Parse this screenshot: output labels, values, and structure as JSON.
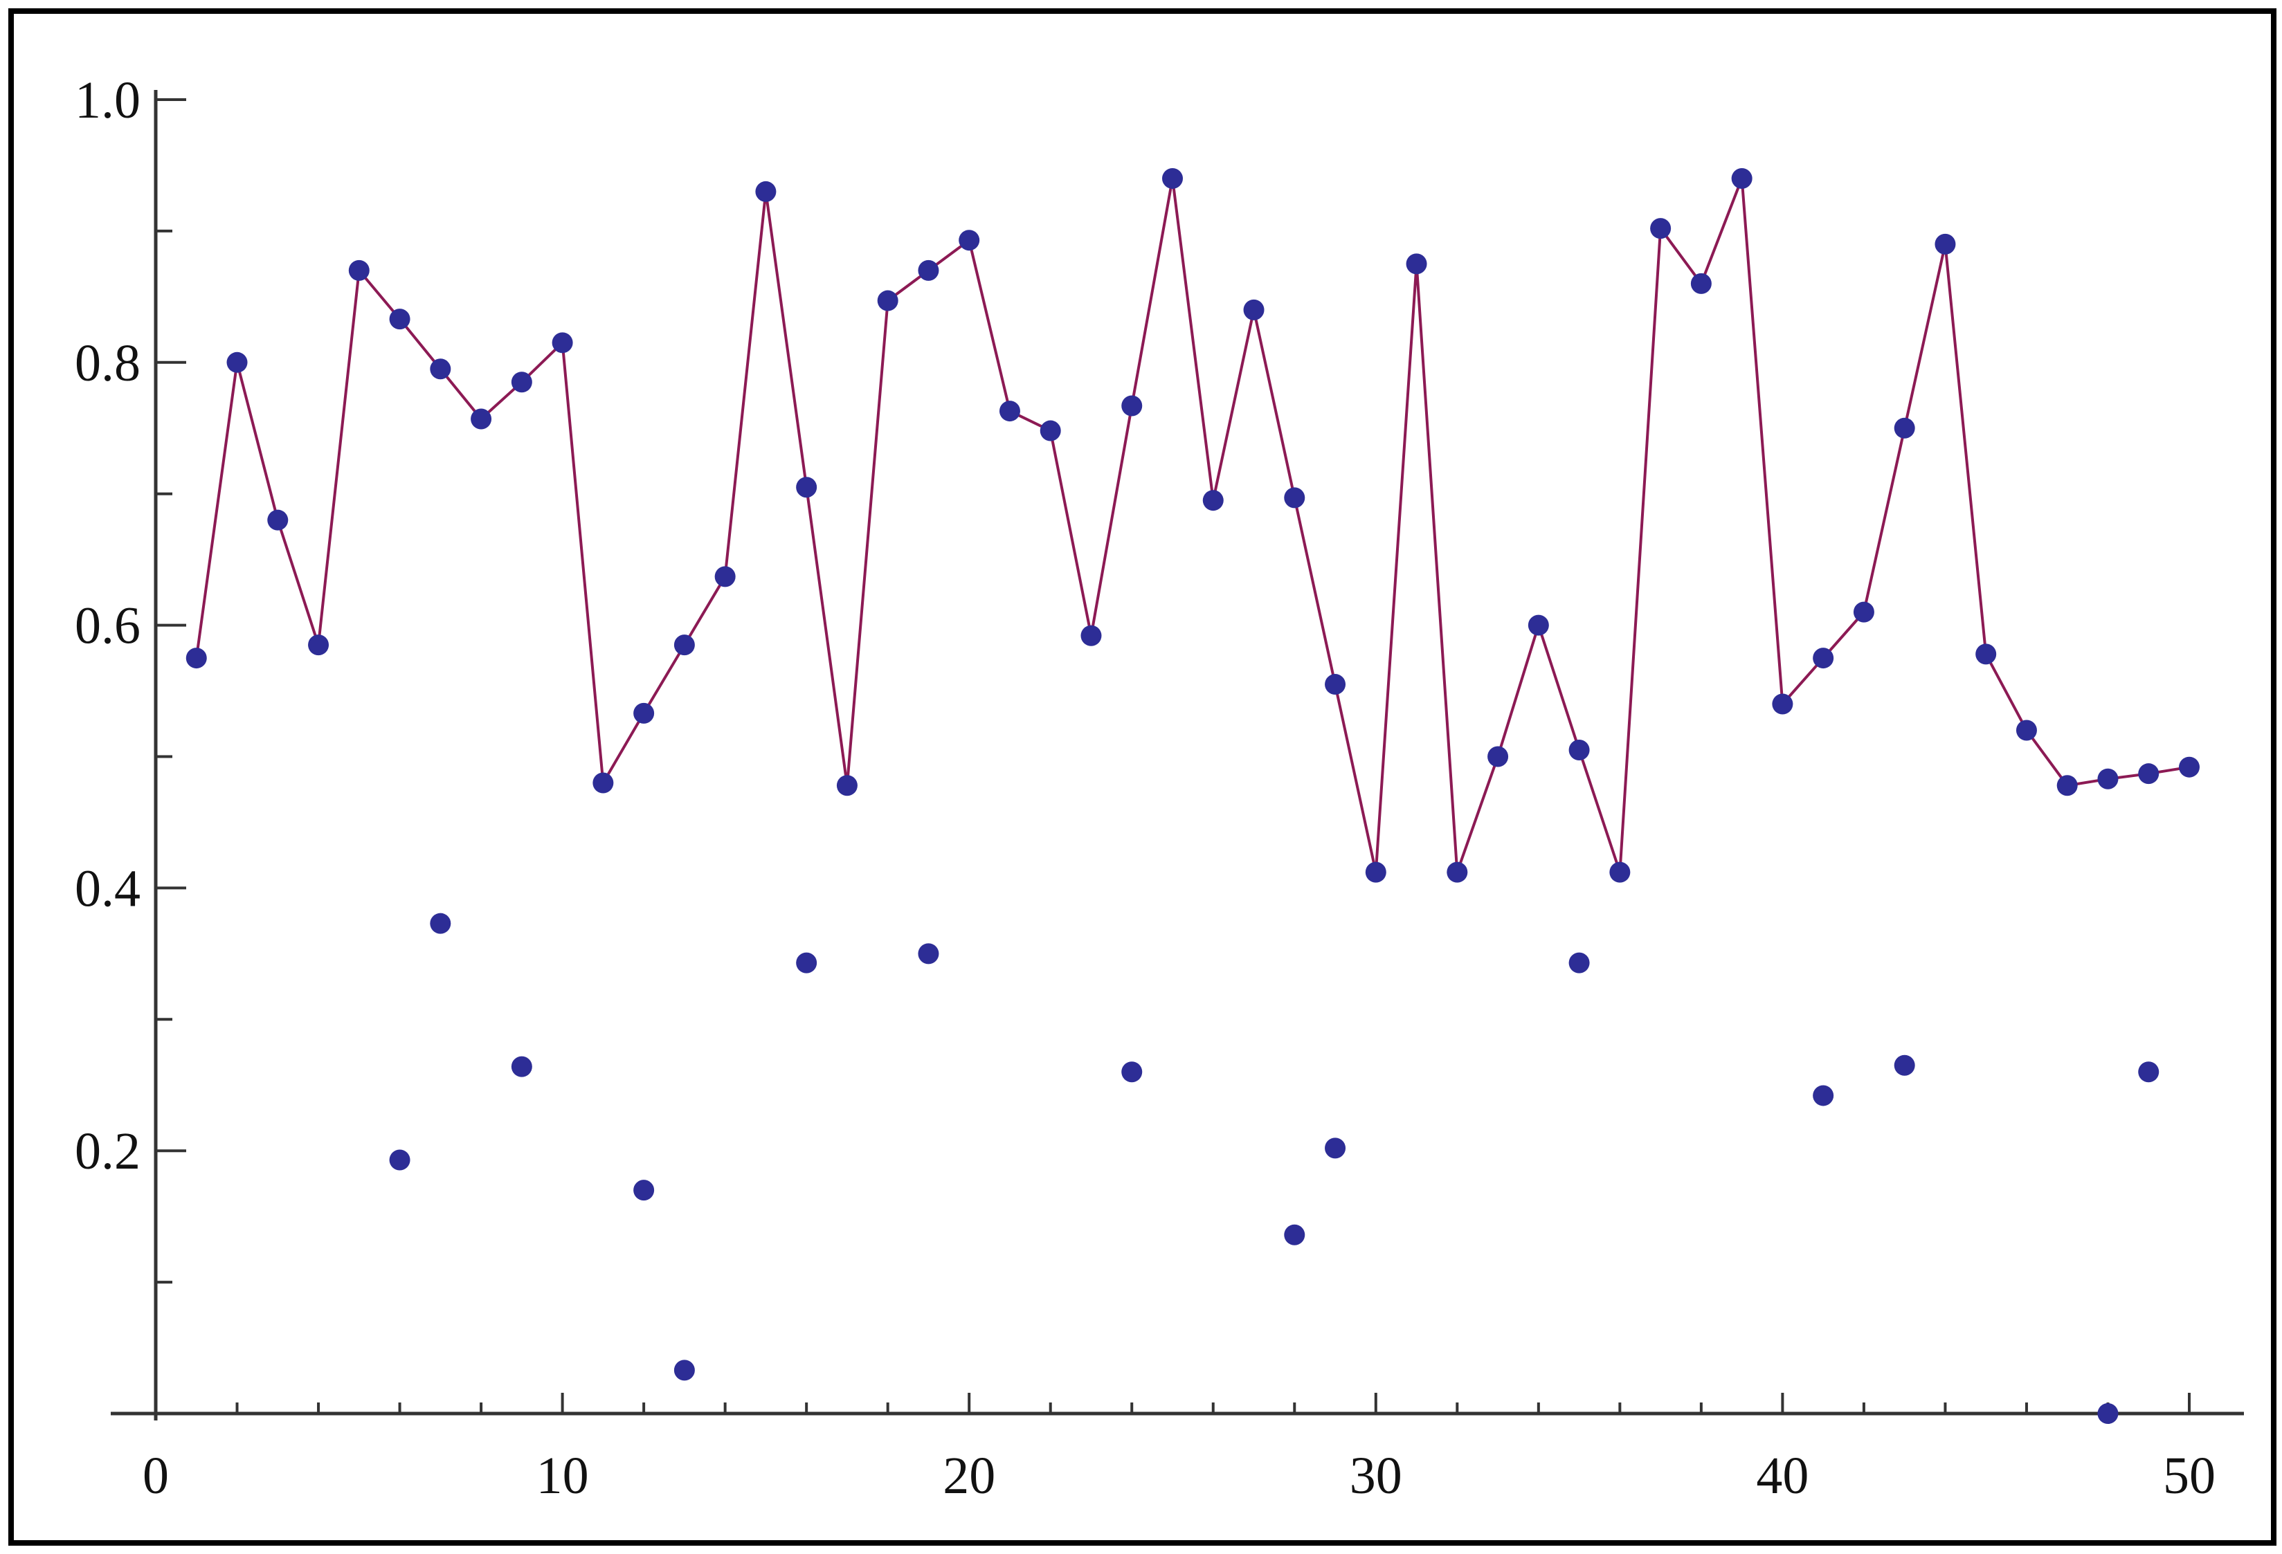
{
  "chart_data": {
    "type": "scatter",
    "title": "",
    "xlabel": "",
    "ylabel": "",
    "xlim": [
      0,
      51
    ],
    "ylim": [
      0,
      1.0
    ],
    "x_ticks": [
      0,
      10,
      20,
      30,
      40,
      50
    ],
    "x_tick_labels": [
      "0",
      "10",
      "20",
      "30",
      "40",
      "50"
    ],
    "y_ticks": [
      0.2,
      0.4,
      0.6,
      0.8,
      1.0
    ],
    "y_tick_labels": [
      "0.2",
      "0.4",
      "0.6",
      "0.8",
      "1.0"
    ],
    "grid": false,
    "colors": {
      "line": "#8c1a54",
      "points": "#2d2d96",
      "axes": "#333333"
    },
    "series": [
      {
        "type": "line",
        "markers": true,
        "x": [
          1,
          2,
          3,
          4,
          5,
          6,
          7,
          8,
          9,
          10,
          11,
          12,
          13,
          14,
          15,
          16,
          17,
          18,
          19,
          20,
          21,
          22,
          23,
          24,
          25,
          26,
          27,
          28,
          29,
          30,
          31,
          32,
          33,
          34,
          35,
          36,
          37,
          38,
          39,
          40,
          41,
          42,
          43,
          44,
          45,
          46,
          47,
          48,
          49,
          50
        ],
        "y": [
          0.575,
          0.8,
          0.68,
          0.585,
          0.87,
          0.833,
          0.795,
          0.757,
          0.785,
          0.815,
          0.48,
          0.533,
          0.585,
          0.637,
          0.93,
          0.705,
          0.478,
          0.847,
          0.87,
          0.893,
          0.763,
          0.748,
          0.592,
          0.767,
          0.94,
          0.695,
          0.84,
          0.697,
          0.555,
          0.412,
          0.875,
          0.412,
          0.5,
          0.6,
          0.505,
          0.412,
          0.902,
          0.86,
          0.94,
          0.54,
          0.575,
          0.61,
          0.75,
          0.89,
          0.578,
          0.52,
          0.478,
          0.483,
          0.487,
          0.492
        ]
      },
      {
        "type": "scatter",
        "markers": true,
        "x": [
          6,
          7,
          9,
          12,
          13,
          16,
          19,
          24,
          28,
          29,
          35,
          41,
          43,
          48,
          49
        ],
        "y": [
          0.193,
          0.373,
          0.264,
          0.17,
          0.033,
          0.343,
          0.35,
          0.26,
          0.136,
          0.202,
          0.343,
          0.242,
          0.265,
          0.0,
          0.26
        ]
      }
    ]
  }
}
